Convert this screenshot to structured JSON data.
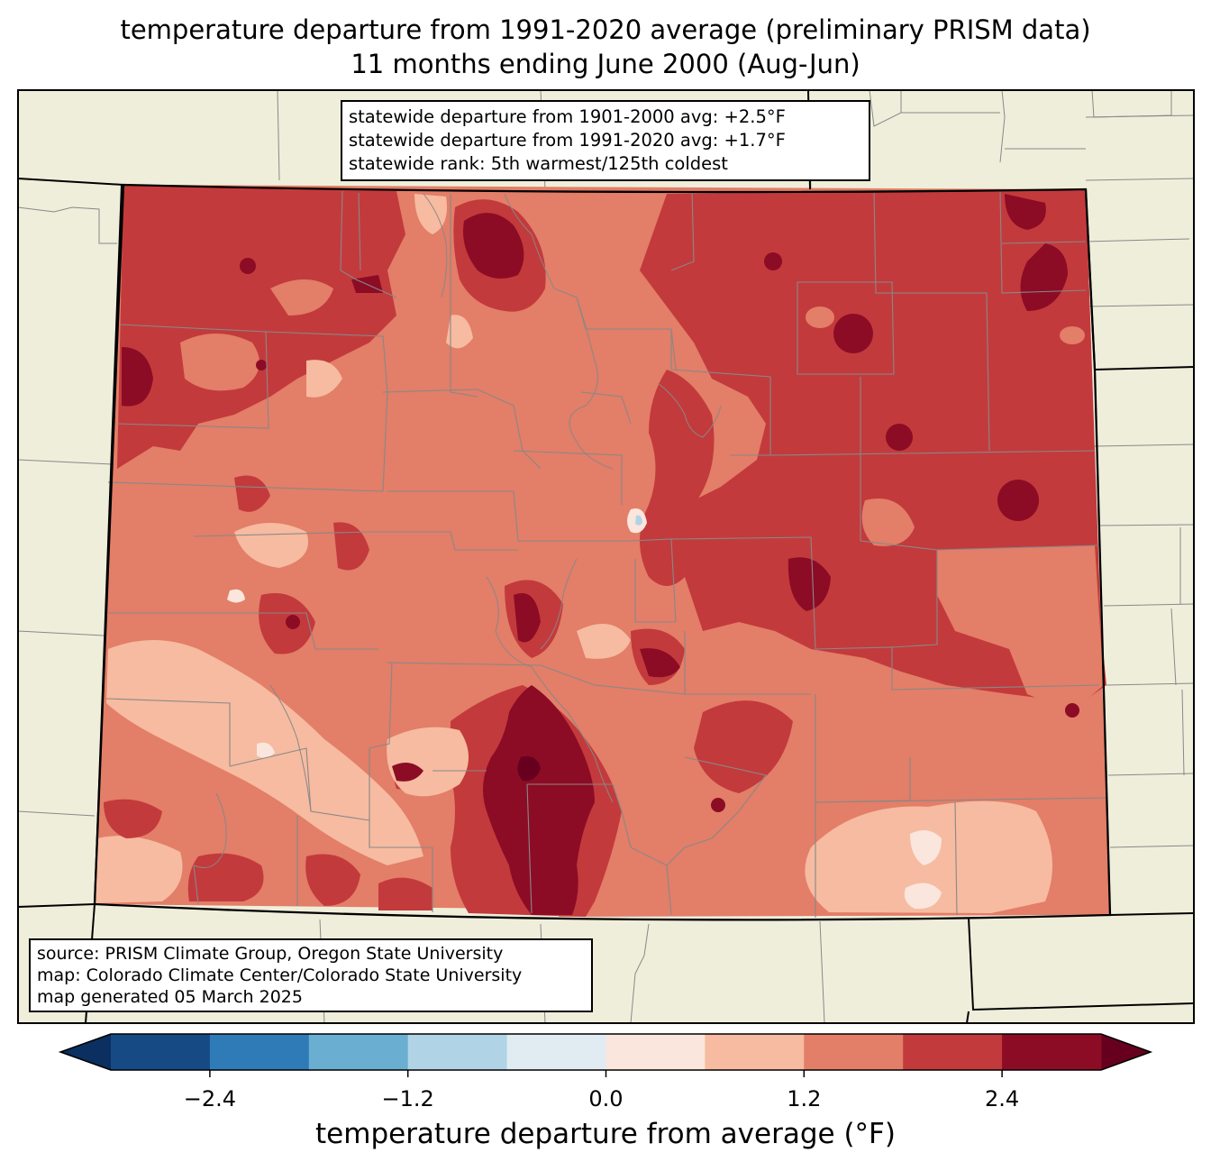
{
  "title": {
    "line1": "temperature departure from 1991-2020 average (preliminary PRISM data)",
    "line2": "11 months ending June 2000 (Aug-Jun)"
  },
  "stats": {
    "line1": "statewide departure from 1901-2000 avg: +2.5°F",
    "line2": "statewide departure from 1991-2020 avg: +1.7°F",
    "line3": "statewide rank: 5th warmest/125th coldest"
  },
  "credits": {
    "line1": "source: PRISM Climate Group, Oregon State University",
    "line2": "map: Colorado Climate Center/Colorado State University",
    "line3": "map generated 05 March 2025"
  },
  "colorbar": {
    "label": "temperature departure from average (°F)",
    "bounds": [
      -3.0,
      -2.4,
      -1.8,
      -1.2,
      -0.6,
      0.0,
      0.6,
      1.2,
      1.8,
      2.4,
      3.0
    ],
    "colors": [
      "#164a85",
      "#2f7bb8",
      "#6aaed1",
      "#b0d4e6",
      "#e1ebf2",
      "#fae6dc",
      "#f6bba0",
      "#e37e68",
      "#c33a3c",
      "#8c0c25"
    ],
    "extend_low_color": "#0a2f60",
    "extend_high_color": "#67001f",
    "ticks": [
      {
        "value": -2.4,
        "label": "−2.4"
      },
      {
        "value": -1.2,
        "label": "−1.2"
      },
      {
        "value": 0.0,
        "label": "0.0"
      },
      {
        "value": 1.2,
        "label": "1.2"
      },
      {
        "value": 2.4,
        "label": "2.4"
      }
    ]
  },
  "map_colors": {
    "land": "#efeedb",
    "border": "#000000",
    "county": "#888888"
  }
}
